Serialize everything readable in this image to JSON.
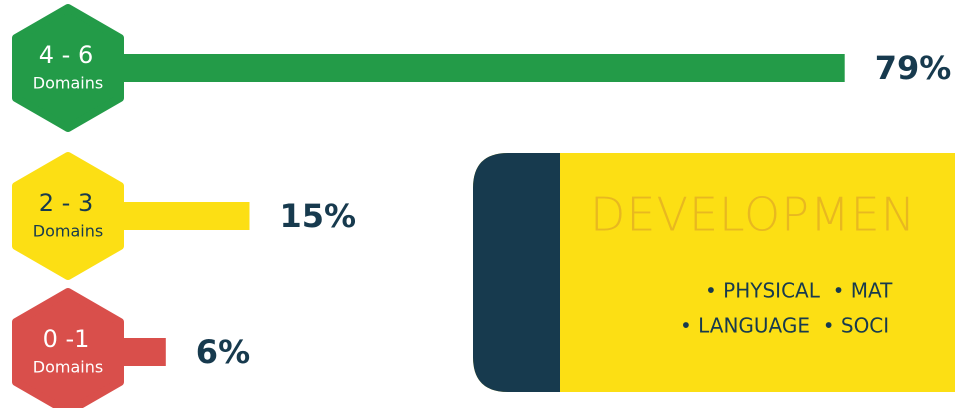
{
  "chart_data": {
    "type": "bar",
    "categories": [
      "4 - 6",
      "2 - 3",
      "0 -1"
    ],
    "category_sublabel": "Domains",
    "values": [
      79,
      15,
      6
    ],
    "value_labels": [
      "79%",
      "15%",
      "6%"
    ],
    "colors": [
      "#239b48",
      "#fcdf14",
      "#d94f4b"
    ]
  },
  "card": {
    "title": "DEVELOPMEN",
    "lines": [
      "• PHYSICAL  • MAT",
      "• LANGUAGE  • SOCI"
    ]
  }
}
